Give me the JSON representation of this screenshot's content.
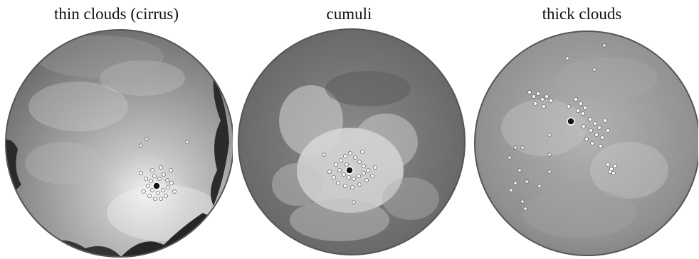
{
  "panels": [
    {
      "title": "thin clouds (cirrus)"
    },
    {
      "title": "cumuli"
    },
    {
      "title": "thick clouds"
    }
  ],
  "colors": {
    "background": "#ffffff",
    "sky_dark": "#3a3a3a",
    "sky_mid": "#8a8a8a",
    "sky_light": "#d9d9d9",
    "marker_fill": "#ffffff",
    "sun_marker": "#111111"
  }
}
